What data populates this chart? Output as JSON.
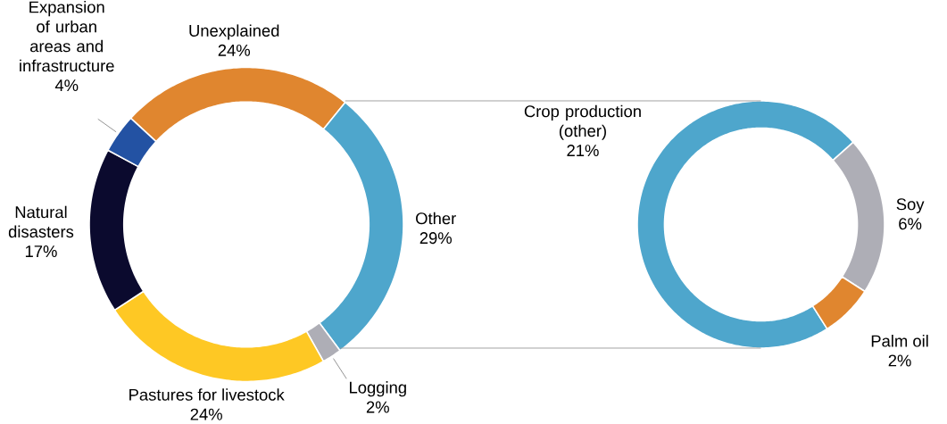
{
  "chart_data": [
    {
      "type": "donut",
      "categories": [
        "Unexplained",
        "Other",
        "Logging",
        "Pastures for livestock",
        "Natural disasters",
        "Expansion of urban areas and infrastructure"
      ],
      "values": [
        24,
        29,
        2,
        24,
        17,
        4
      ],
      "colors": [
        "#e0862f",
        "#4ea6cc",
        "#aeaeb6",
        "#fec824",
        "#0b0a2e",
        "#2352a3"
      ],
      "value_labels": [
        "24%",
        "29%",
        "2%",
        "24%",
        "17%",
        "4%"
      ]
    },
    {
      "type": "donut",
      "categories": [
        "Crop production (other)",
        "Soy",
        "Palm oil"
      ],
      "values": [
        21,
        6,
        2
      ],
      "colors": [
        "#4ea6cc",
        "#aeaeb6",
        "#e0862f"
      ],
      "value_labels": [
        "21%",
        "6%",
        "2%"
      ]
    }
  ]
}
